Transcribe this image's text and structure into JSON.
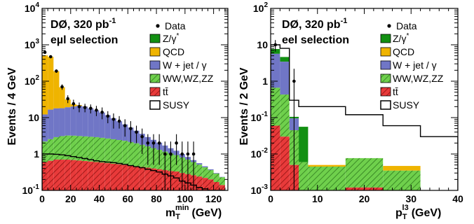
{
  "chart_data": [
    {
      "type": "area",
      "experiment": "DØ, 320 pb",
      "lumi_exp": "-1",
      "selection": "eµl selection",
      "ylabel": "Events / 4 GeV",
      "xlabel_main": "m",
      "xlabel_sub": "T",
      "xlabel_sup": "min",
      "xlabel_unit": "(GeV)",
      "xlim": [
        0,
        130
      ],
      "ylim": [
        0.1,
        10000
      ],
      "yscale": "log",
      "x_ticks": [
        0,
        20,
        40,
        60,
        80,
        100,
        120
      ],
      "y_ticks": [
        {
          "base": "10",
          "exp": "-1"
        },
        {
          "base": "1",
          "exp": ""
        },
        {
          "base": "10",
          "exp": ""
        },
        {
          "base": "10",
          "exp": "2"
        },
        {
          "base": "10",
          "exp": "3"
        },
        {
          "base": "10",
          "exp": "4"
        }
      ],
      "legend_position": "top-right",
      "bin_edges": [
        0,
        4,
        8,
        12,
        16,
        20,
        24,
        28,
        32,
        36,
        40,
        44,
        48,
        52,
        56,
        60,
        64,
        68,
        72,
        76,
        80,
        84,
        88,
        92,
        96,
        100,
        104,
        108,
        112,
        116,
        120,
        124,
        128
      ],
      "stack": [
        {
          "name": "tt̄",
          "color": "#e83a3a",
          "hatch": true,
          "values": [
            0.6,
            0.65,
            0.7,
            0.7,
            0.7,
            0.68,
            0.66,
            0.64,
            0.62,
            0.6,
            0.58,
            0.56,
            0.54,
            0.52,
            0.5,
            0.48,
            0.46,
            0.44,
            0.42,
            0.4,
            0.38,
            0.36,
            0.34,
            0.33,
            0.3,
            0.28,
            0.26,
            0.24,
            0.22,
            0.2,
            0.17,
            0.14
          ]
        },
        {
          "name": "WW,WZ,ZZ",
          "color": "#6fd04c",
          "hatch": true,
          "values": [
            1.6,
            1.9,
            2.2,
            2.4,
            2.5,
            2.5,
            2.45,
            2.4,
            2.35,
            2.3,
            2.2,
            2.1,
            2.0,
            1.9,
            1.8,
            1.65,
            1.5,
            1.35,
            1.2,
            1.05,
            0.92,
            0.8,
            0.7,
            0.6,
            0.5,
            0.42,
            0.34,
            0.27,
            0.21,
            0.16,
            0.12,
            0.09
          ]
        },
        {
          "name": "W + jet / γ",
          "color": "#7076c6",
          "hatch": false,
          "values": [
            10,
            14,
            15,
            15,
            16,
            17,
            18,
            17,
            15,
            13,
            11,
            9,
            7,
            5.5,
            4.2,
            3.2,
            2.4,
            1.8,
            1.3,
            1.0,
            0.75,
            0.55,
            0.4,
            0.3,
            0.2,
            0.13,
            0.08,
            0.05,
            0.03,
            0.02,
            0.01,
            0.005
          ]
        },
        {
          "name": "QCD",
          "color": "#efb400",
          "hatch": false,
          "values": [
            500,
            450,
            170,
            50,
            12,
            3,
            1,
            0.3,
            0.1,
            0.05,
            0,
            0,
            0,
            0,
            0,
            0,
            0,
            0,
            0,
            0,
            0,
            0,
            0,
            0,
            0,
            0,
            0,
            0,
            0,
            0,
            0,
            0
          ]
        },
        {
          "name": "Z/γ*",
          "color": "#129012",
          "hatch": false,
          "values": [
            2,
            2,
            1,
            0.5,
            0.2,
            0.1,
            0,
            0,
            0,
            0,
            0,
            0,
            0,
            0,
            0,
            0,
            0,
            0,
            0,
            0,
            0,
            0,
            0,
            0,
            0,
            0,
            0,
            0,
            0,
            0,
            0,
            0
          ]
        }
      ],
      "susy": {
        "name": "SUSY",
        "values": [
          1.0,
          1.0,
          0.98,
          0.95,
          0.9,
          0.85,
          0.8,
          0.75,
          0.7,
          0.65,
          0.62,
          0.6,
          0.58,
          0.55,
          0.52,
          0.48,
          0.45,
          0.42,
          0.38,
          0.35,
          0.32,
          0.28,
          0.25,
          0.22,
          0.18,
          0.16,
          0.14,
          0.12,
          0.11,
          0.1,
          0.1,
          0.1
        ]
      },
      "data": {
        "name": "Data",
        "points": [
          {
            "x": 2,
            "y": 620,
            "err": 35
          },
          {
            "x": 6,
            "y": 470,
            "err": 30
          },
          {
            "x": 10,
            "y": 190,
            "err": 20
          },
          {
            "x": 14,
            "y": 70,
            "err": 12
          },
          {
            "x": 18,
            "y": 33,
            "err": 8
          },
          {
            "x": 22,
            "y": 24,
            "err": 7
          },
          {
            "x": 26,
            "y": 20,
            "err": 6
          },
          {
            "x": 30,
            "y": 19,
            "err": 5
          },
          {
            "x": 34,
            "y": 18,
            "err": 5
          },
          {
            "x": 38,
            "y": 16,
            "err": 5
          },
          {
            "x": 42,
            "y": 14,
            "err": 5
          },
          {
            "x": 46,
            "y": 11,
            "err": 4
          },
          {
            "x": 50,
            "y": 9,
            "err": 4
          },
          {
            "x": 54,
            "y": 8,
            "err": 3
          },
          {
            "x": 58,
            "y": 6,
            "err": 3
          },
          {
            "x": 62,
            "y": 5,
            "err": 3
          },
          {
            "x": 66,
            "y": 4,
            "err": 2
          },
          {
            "x": 70,
            "y": 3,
            "err": 2
          },
          {
            "x": 74,
            "y": 2,
            "err": 1.5
          },
          {
            "x": 78,
            "y": 2,
            "err": 1.5
          },
          {
            "x": 82,
            "y": 2,
            "err": 1.5
          },
          {
            "x": 86,
            "y": 1,
            "err": 1.2
          },
          {
            "x": 90,
            "y": 1,
            "err": 1.2
          },
          {
            "x": 94,
            "y": 2,
            "err": 1.5
          },
          {
            "x": 98,
            "y": 1,
            "err": 1.2
          },
          {
            "x": 102,
            "y": 1,
            "err": 1.2
          },
          {
            "x": 106,
            "y": 1,
            "err": 1.2
          }
        ]
      }
    },
    {
      "type": "area",
      "experiment": "DØ, 320 pb",
      "lumi_exp": "-1",
      "selection": "eel selection",
      "ylabel": "Events / 2 GeV",
      "xlabel_main": "p",
      "xlabel_sub": "T",
      "xlabel_sup": "l3",
      "xlabel_unit": "(GeV)",
      "xlim": [
        0,
        40
      ],
      "ylim": [
        0.001,
        100
      ],
      "yscale": "log",
      "x_ticks": [
        0,
        10,
        20,
        30,
        40
      ],
      "y_ticks": [
        {
          "base": "10",
          "exp": "-3"
        },
        {
          "base": "10",
          "exp": "-2"
        },
        {
          "base": "10",
          "exp": "-1"
        },
        {
          "base": "1",
          "exp": ""
        },
        {
          "base": "10",
          "exp": ""
        },
        {
          "base": "10",
          "exp": "2"
        }
      ],
      "legend_position": "top-right",
      "bin_edges": [
        0,
        2,
        4,
        6,
        8,
        16,
        24,
        32,
        40
      ],
      "stack": [
        {
          "name": "tt̄",
          "color": "#e83a3a",
          "hatch": true,
          "values": [
            0.06,
            0.03,
            0.005,
            0,
            0,
            0.0012,
            0,
            0
          ]
        },
        {
          "name": "WW,WZ,ZZ",
          "color": "#6fd04c",
          "hatch": true,
          "values": [
            0.6,
            0.4,
            0.04,
            0.006,
            0.0045,
            0.0065,
            0.0035,
            0
          ]
        },
        {
          "name": "W + jet / γ",
          "color": "#7076c6",
          "hatch": false,
          "values": [
            5,
            3,
            0.05,
            0,
            0,
            0,
            0,
            0
          ]
        },
        {
          "name": "QCD",
          "color": "#efb400",
          "hatch": false,
          "values": [
            0,
            0,
            0,
            0,
            0.0005,
            0,
            0.0012,
            0
          ]
        },
        {
          "name": "Z/γ*",
          "color": "#129012",
          "hatch": false,
          "values": [
            2,
            1.2,
            0.01,
            0.05,
            0,
            0,
            0,
            0
          ]
        }
      ],
      "susy": {
        "name": "SUSY",
        "values": [
          10,
          8,
          0.3,
          0.2,
          0.2,
          0.12,
          0.06,
          0.03
        ]
      },
      "data": {
        "name": "Data",
        "points": [
          {
            "x": 1,
            "y": 10,
            "err": 3.5
          },
          {
            "x": 5,
            "y": 1,
            "err": 1.2
          }
        ]
      }
    }
  ],
  "legend": {
    "data": "Data",
    "z": "Z/γ",
    "z_sup": "*",
    "qcd": "QCD",
    "wjet": "W + jet / γ",
    "ww": "WW,WZ,ZZ",
    "tt": "tt̄",
    "susy": "SUSY"
  }
}
